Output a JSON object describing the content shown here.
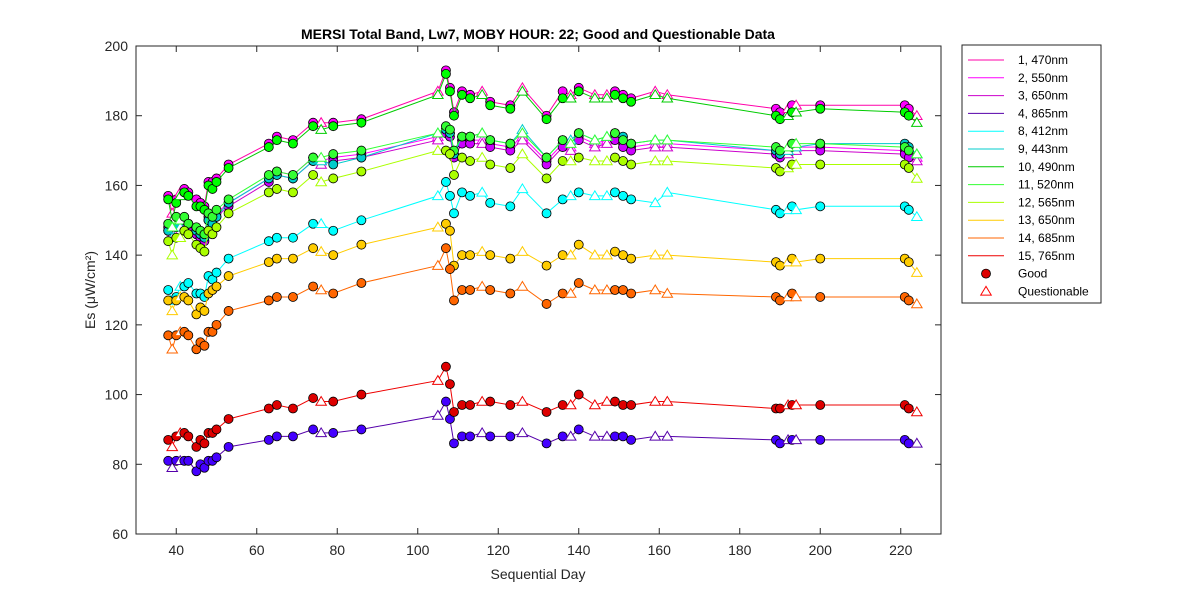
{
  "chart_data": {
    "type": "line",
    "title": "MERSI Total Band,  Lw7, MOBY HOUR: 22;  Good and Questionable Data",
    "xlabel": "Sequential Day",
    "ylabel": "Es (μW/cm²)",
    "xlim": [
      30,
      230
    ],
    "ylim": [
      60,
      200
    ],
    "xticks": [
      40,
      60,
      80,
      100,
      120,
      140,
      160,
      180,
      200,
      220
    ],
    "yticks": [
      60,
      80,
      100,
      120,
      140,
      160,
      180,
      200
    ],
    "grid": false,
    "legend_position": "outside-right",
    "x": [
      38,
      39,
      40,
      41,
      42,
      43,
      45,
      46,
      47,
      48,
      49,
      50,
      53,
      63,
      65,
      69,
      74,
      76,
      79,
      86,
      105,
      107,
      108,
      109,
      111,
      113,
      116,
      118,
      123,
      126,
      132,
      136,
      138,
      140,
      144,
      147,
      149,
      151,
      153,
      159,
      162,
      189,
      190,
      192,
      193,
      194,
      200,
      221,
      222,
      224
    ],
    "series": [
      {
        "name": "1, 470nm",
        "color": "#ff00aa",
        "marker_fill": "#ff00ff",
        "values": [
          157,
          152,
          156,
          158,
          159,
          158,
          156,
          155,
          154,
          161,
          161,
          162,
          166,
          172,
          174,
          173,
          178,
          178,
          178,
          179,
          187,
          193,
          188,
          181,
          187,
          186,
          187,
          184,
          183,
          188,
          180,
          187,
          186,
          188,
          186,
          186,
          187,
          186,
          185,
          187,
          186,
          182,
          181,
          182,
          183,
          183,
          183,
          183,
          182,
          180
        ]
      },
      {
        "name": "2, 550nm",
        "color": "#ff00ff",
        "marker_fill": "#ff00ff",
        "values": [
          148,
          147,
          150,
          149,
          150,
          148,
          147,
          146,
          145,
          151,
          150,
          152,
          155,
          162,
          164,
          163,
          168,
          167,
          168,
          169,
          174,
          176,
          175,
          169,
          173,
          173,
          173,
          172,
          171,
          174,
          167,
          172,
          171,
          174,
          172,
          173,
          174,
          172,
          171,
          172,
          172,
          170,
          169,
          170,
          171,
          171,
          171,
          170,
          169,
          168
        ]
      },
      {
        "name": "3, 650nm",
        "color": "#cc00cc",
        "marker_fill": "#cc00ff",
        "values": [
          147,
          146,
          149,
          148,
          149,
          147,
          146,
          145,
          144,
          150,
          149,
          151,
          154,
          161,
          163,
          162,
          167,
          166,
          167,
          168,
          173,
          175,
          174,
          168,
          172,
          172,
          172,
          171,
          170,
          173,
          166,
          171,
          170,
          173,
          171,
          172,
          173,
          171,
          170,
          171,
          171,
          169,
          168,
          169,
          170,
          170,
          170,
          169,
          168,
          167
        ]
      },
      {
        "name": "4, 865nm",
        "color": "#5500aa",
        "marker_fill": "#4400ff",
        "values": [
          81,
          79,
          81,
          81,
          81,
          81,
          78,
          80,
          79,
          81,
          81,
          82,
          85,
          87,
          88,
          88,
          90,
          89,
          89,
          90,
          94,
          98,
          93,
          86,
          88,
          88,
          89,
          88,
          88,
          89,
          86,
          88,
          88,
          90,
          88,
          88,
          88,
          88,
          87,
          88,
          88,
          87,
          86,
          87,
          87,
          87,
          87,
          87,
          86,
          86
        ]
      },
      {
        "name": "8, 412nm",
        "color": "#00ffff",
        "marker_fill": "#00ffff",
        "values": [
          130,
          127,
          128,
          131,
          131,
          132,
          129,
          129,
          128,
          134,
          133,
          135,
          139,
          144,
          145,
          145,
          149,
          149,
          147,
          150,
          157,
          161,
          157,
          152,
          158,
          157,
          158,
          155,
          154,
          159,
          152,
          156,
          157,
          158,
          157,
          157,
          158,
          157,
          156,
          155,
          158,
          153,
          152,
          153,
          154,
          153,
          154,
          154,
          153,
          151
        ]
      },
      {
        "name": "9, 443nm",
        "color": "#00cccc",
        "marker_fill": "#00cccc",
        "values": [
          147,
          145,
          148,
          148,
          150,
          149,
          147,
          146,
          145,
          150,
          149,
          151,
          155,
          162,
          163,
          162,
          167,
          167,
          166,
          168,
          175,
          176,
          175,
          169,
          174,
          174,
          175,
          173,
          172,
          176,
          168,
          173,
          173,
          175,
          173,
          174,
          175,
          174,
          172,
          173,
          173,
          170,
          169,
          170,
          171,
          171,
          172,
          172,
          171,
          169
        ]
      },
      {
        "name": "10, 490nm",
        "color": "#00cc00",
        "marker_fill": "#00ff00",
        "values": [
          156,
          150,
          155,
          157,
          158,
          157,
          154,
          154,
          153,
          160,
          159,
          161,
          165,
          171,
          173,
          172,
          177,
          176,
          177,
          178,
          186,
          192,
          187,
          180,
          186,
          185,
          186,
          183,
          182,
          187,
          179,
          185,
          185,
          187,
          185,
          185,
          186,
          185,
          184,
          186,
          185,
          180,
          179,
          180,
          181,
          181,
          182,
          181,
          180,
          178
        ]
      },
      {
        "name": "11, 520nm",
        "color": "#33ff33",
        "marker_fill": "#33ff33",
        "values": [
          149,
          148,
          151,
          150,
          151,
          149,
          148,
          147,
          146,
          152,
          151,
          153,
          156,
          163,
          164,
          163,
          168,
          168,
          169,
          170,
          175,
          177,
          176,
          170,
          174,
          174,
          175,
          173,
          172,
          175,
          168,
          173,
          172,
          175,
          173,
          174,
          175,
          173,
          172,
          173,
          173,
          171,
          170,
          171,
          172,
          172,
          172,
          171,
          170,
          169
        ]
      },
      {
        "name": "12, 565nm",
        "color": "#aaff00",
        "marker_fill": "#aaff00",
        "values": [
          144,
          140,
          145,
          145,
          147,
          146,
          143,
          142,
          141,
          147,
          146,
          148,
          152,
          158,
          159,
          158,
          163,
          161,
          162,
          164,
          170,
          170,
          169,
          163,
          168,
          167,
          168,
          166,
          165,
          169,
          162,
          167,
          167,
          168,
          167,
          167,
          168,
          167,
          166,
          167,
          167,
          165,
          164,
          165,
          166,
          166,
          166,
          166,
          165,
          162
        ]
      },
      {
        "name": "13, 650nm",
        "color": "#ffcc00",
        "marker_fill": "#ffcc00",
        "values": [
          127,
          124,
          127,
          128,
          128,
          127,
          123,
          125,
          124,
          129,
          130,
          131,
          134,
          138,
          139,
          139,
          142,
          141,
          140,
          143,
          148,
          149,
          147,
          137,
          140,
          140,
          141,
          140,
          139,
          141,
          137,
          140,
          140,
          143,
          140,
          140,
          141,
          140,
          139,
          140,
          140,
          138,
          137,
          138,
          139,
          138,
          139,
          139,
          138,
          135
        ]
      },
      {
        "name": "14, 685nm",
        "color": "#ff6600",
        "marker_fill": "#ff6600",
        "values": [
          117,
          113,
          117,
          118,
          118,
          117,
          113,
          115,
          114,
          118,
          118,
          120,
          124,
          127,
          128,
          128,
          131,
          130,
          129,
          132,
          137,
          142,
          136,
          127,
          130,
          130,
          131,
          130,
          129,
          131,
          126,
          129,
          129,
          132,
          130,
          130,
          130,
          130,
          129,
          130,
          129,
          128,
          127,
          128,
          129,
          128,
          128,
          128,
          127,
          126
        ]
      },
      {
        "name": "15, 765nm",
        "color": "#ee0000",
        "marker_fill": "#dd0000",
        "values": [
          87,
          85,
          88,
          89,
          89,
          88,
          85,
          87,
          86,
          89,
          89,
          90,
          93,
          96,
          97,
          96,
          99,
          98,
          98,
          100,
          104,
          108,
          103,
          95,
          97,
          97,
          98,
          98,
          97,
          98,
          95,
          97,
          97,
          100,
          97,
          98,
          98,
          97,
          97,
          98,
          98,
          96,
          96,
          97,
          97,
          97,
          97,
          97,
          96,
          95
        ]
      }
    ],
    "questionable_days": [
      39,
      41,
      76,
      105,
      116,
      126,
      138,
      144,
      147,
      159,
      162,
      192,
      194,
      224
    ],
    "legend_markers": [
      {
        "label": "Good",
        "shape": "circle",
        "fill": "#dd0000",
        "stroke": "#000000"
      },
      {
        "label": "Questionable",
        "shape": "triangle",
        "fill": "none",
        "stroke": "#ff0000"
      }
    ]
  }
}
